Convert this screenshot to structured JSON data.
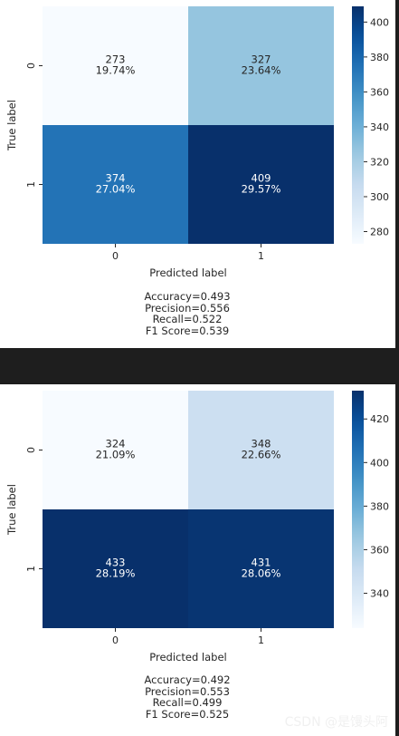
{
  "chart_data": [
    {
      "type": "heatmap",
      "matrix": [
        [
          273,
          327
        ],
        [
          374,
          409
        ]
      ],
      "percentages": [
        [
          "19.74%",
          "23.64%"
        ],
        [
          "27.04%",
          "29.57%"
        ]
      ],
      "xticklabels": [
        "0",
        "1"
      ],
      "yticklabels": [
        "0",
        "1"
      ],
      "xlabel": "Predicted label",
      "ylabel": "True label",
      "colormap": "Blues",
      "colorbar_range": [
        273,
        409
      ],
      "colorbar_ticks": [
        280,
        300,
        320,
        340,
        360,
        380,
        400
      ],
      "metrics": [
        "Accuracy=0.493",
        "Precision=0.556",
        "Recall=0.522",
        "F1 Score=0.539"
      ]
    },
    {
      "type": "heatmap",
      "matrix": [
        [
          324,
          348
        ],
        [
          433,
          431
        ]
      ],
      "percentages": [
        [
          "21.09%",
          "22.66%"
        ],
        [
          "28.19%",
          "28.06%"
        ]
      ],
      "xticklabels": [
        "0",
        "1"
      ],
      "yticklabels": [
        "0",
        "1"
      ],
      "xlabel": "Predicted label",
      "ylabel": "True label",
      "colormap": "Blues",
      "colorbar_range": [
        324,
        433
      ],
      "colorbar_ticks": [
        340,
        360,
        380,
        400,
        420
      ],
      "metrics": [
        "Accuracy=0.492",
        "Precision=0.553",
        "Recall=0.499",
        "F1 Score=0.525"
      ]
    }
  ],
  "watermark": "CSDN @是馒头阿",
  "colors": {
    "blues_stops": [
      "#f7fbff",
      "#deebf7",
      "#c6dbef",
      "#9ecae1",
      "#6baed6",
      "#4292c6",
      "#2171b5",
      "#08519c",
      "#08306b"
    ]
  }
}
